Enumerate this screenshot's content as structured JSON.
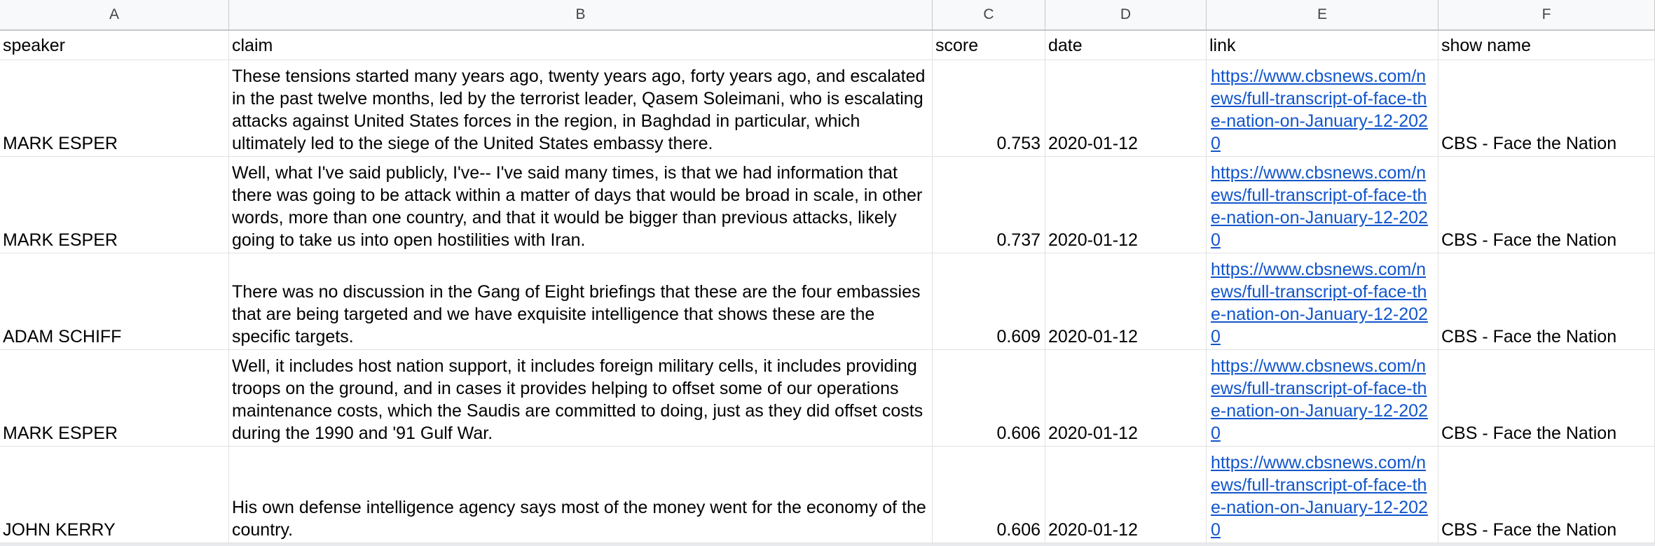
{
  "columns": [
    "A",
    "B",
    "C",
    "D",
    "E",
    "F"
  ],
  "headers": {
    "speaker": "speaker",
    "claim": "claim",
    "score": "score",
    "date": "date",
    "link": "link",
    "show": "show name"
  },
  "rows": [
    {
      "speaker": "MARK ESPER",
      "claim": "These tensions started many years ago, twenty years ago, forty years ago, and escalated in the past twelve months, led by the terrorist leader, Qasem Soleimani, who is escalating attacks against United States forces in the region, in Baghdad in particular, which ultimately led to the siege of the United States embassy there.",
      "score": "0.753",
      "date": "2020-01-12",
      "link": "https://www.cbsnews.com/news/full-transcript-of-face-the-nation-on-January-12-2020",
      "show": "CBS - Face the Nation"
    },
    {
      "speaker": "MARK ESPER",
      "claim": "Well, what I've said publicly, I've-- I've said many times, is that we had information that there was going to be attack within a matter of days that would be broad in scale, in other words, more than one country, and that it would be bigger than previous attacks, likely going to take us into open hostilities with Iran.",
      "score": "0.737",
      "date": "2020-01-12",
      "link": "https://www.cbsnews.com/news/full-transcript-of-face-the-nation-on-January-12-2020",
      "show": "CBS - Face the Nation"
    },
    {
      "speaker": "ADAM SCHIFF",
      "claim": "There was no discussion in the Gang of Eight briefings that these are the four embassies that are being targeted and we have exquisite intelligence that shows these are the specific targets.",
      "score": "0.609",
      "date": "2020-01-12",
      "link": "https://www.cbsnews.com/news/full-transcript-of-face-the-nation-on-January-12-2020",
      "show": "CBS - Face the Nation"
    },
    {
      "speaker": "MARK ESPER",
      "claim": "Well, it includes host nation support, it includes foreign military cells, it includes providing troops on the ground, and in cases it provides helping to offset some of our operations maintenance costs, which the Saudis are committed to doing, just as they did offset costs during the 1990 and '91 Gulf War.",
      "score": "0.606",
      "date": "2020-01-12",
      "link": "https://www.cbsnews.com/news/full-transcript-of-face-the-nation-on-January-12-2020",
      "show": "CBS - Face the Nation"
    },
    {
      "speaker": "JOHN KERRY",
      "claim": "His own defense intelligence agency says most of the money went for the economy of the country.",
      "score": "0.606",
      "date": "2020-01-12",
      "link": "https://www.cbsnews.com/news/full-transcript-of-face-the-nation-on-January-12-2020",
      "show": "CBS - Face the Nation"
    }
  ]
}
